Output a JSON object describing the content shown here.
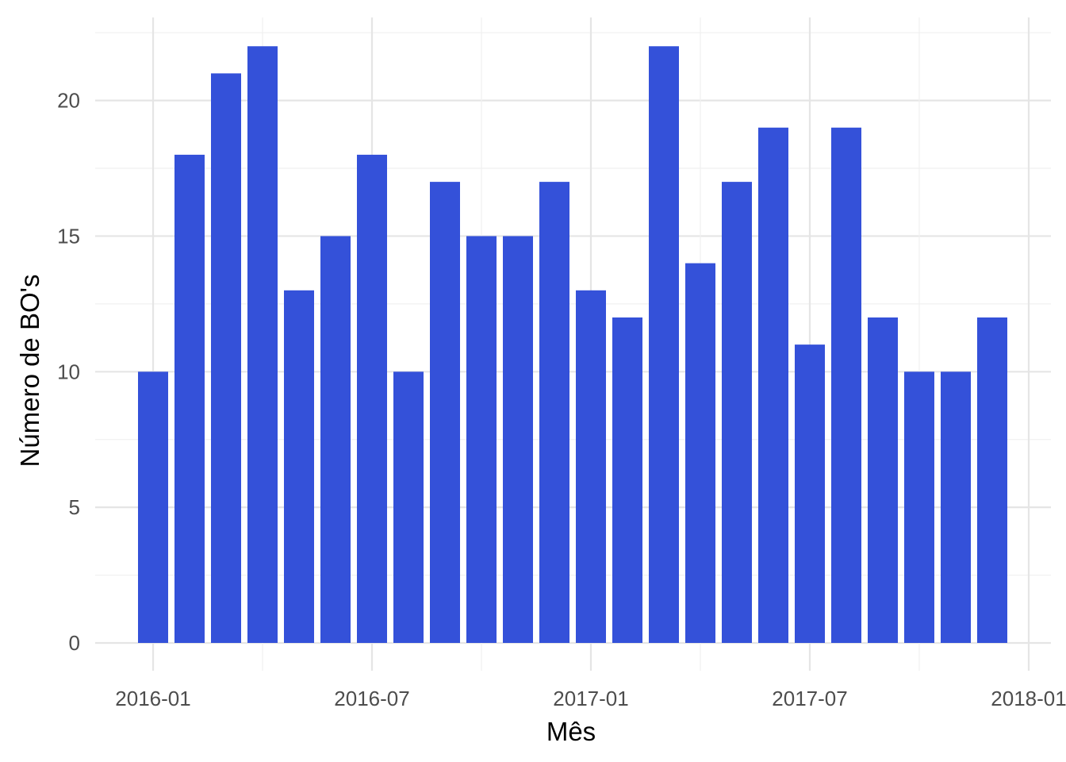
{
  "chart_data": {
    "type": "bar",
    "xlabel": "Mês",
    "ylabel": "Número de BO's",
    "bar_color": "#3451d9",
    "grid": true,
    "x": [
      "2016-01",
      "2016-02",
      "2016-03",
      "2016-04",
      "2016-05",
      "2016-06",
      "2016-07",
      "2016-08",
      "2016-09",
      "2016-10",
      "2016-11",
      "2016-12",
      "2017-01",
      "2017-02",
      "2017-03",
      "2017-04",
      "2017-05",
      "2017-06",
      "2017-07",
      "2017-08",
      "2017-09",
      "2017-10",
      "2017-11",
      "2017-12"
    ],
    "values": [
      10,
      18,
      21,
      22,
      13,
      15,
      18,
      10,
      17,
      15,
      15,
      17,
      13,
      12,
      22,
      14,
      17,
      19,
      11,
      19,
      12,
      10,
      10,
      12
    ],
    "ylim": [
      0,
      22
    ],
    "yticks": [
      0,
      5,
      10,
      15,
      20
    ],
    "xticks": [
      "2016-01",
      "2016-07",
      "2017-01",
      "2017-07",
      "2018-01"
    ]
  }
}
